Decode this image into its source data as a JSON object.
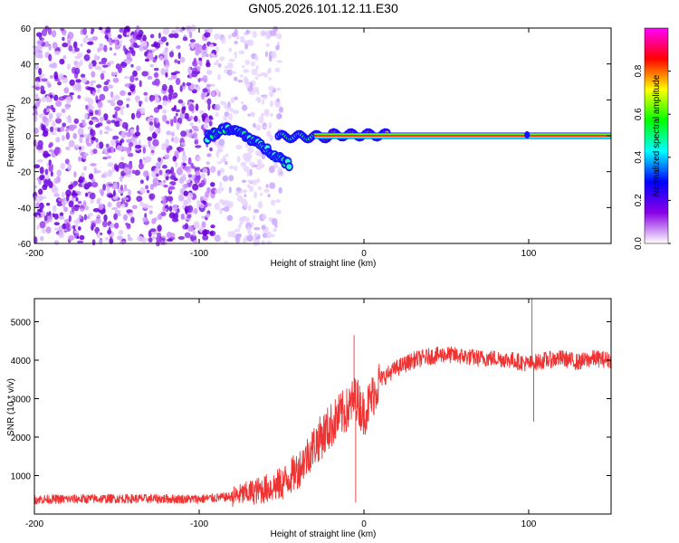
{
  "figure": {
    "title": "GN05.2026.101.12.11.E30"
  },
  "chart_data": [
    {
      "type": "heatmap",
      "title": "GN05.2026.101.12.11.E30",
      "xlabel": "Height of straight line (km)",
      "ylabel": "Frequency (Hz)",
      "xlim": [
        -200,
        150
      ],
      "ylim": [
        -60,
        60
      ],
      "xticks": [
        -200,
        -100,
        0,
        100
      ],
      "xtick_labels": [
        "-200",
        "-100",
        "0",
        "100"
      ],
      "yticks": [
        -60,
        -40,
        -20,
        0,
        20,
        40,
        60
      ],
      "ytick_labels": [
        "-60",
        "-40",
        "-20",
        "0",
        "20",
        "40",
        "60"
      ],
      "colorbar": {
        "label": "Normalized spectral amplitude",
        "range": [
          0,
          1
        ],
        "ticks": [
          0.0,
          0.2,
          0.4,
          0.6,
          0.8
        ],
        "tick_labels": [
          "0.0",
          "0.2",
          "0.4",
          "0.6",
          "0.8"
        ],
        "colormap": "rainbow",
        "colors": [
          "#ffffff",
          "#8a00e6",
          "#0000ff",
          "#00ffff",
          "#00ff00",
          "#ffff00",
          "#ff0000",
          "#ff00ff"
        ]
      },
      "features": {
        "noise_region_x": [
          -200,
          -90
        ],
        "noise_fade_x": [
          -90,
          -50
        ],
        "signal_line_x": [
          -30,
          150
        ],
        "signal_line_frequency": 0,
        "meteor_track": [
          {
            "x": -95,
            "y": -1
          },
          {
            "x": -85,
            "y": 4
          },
          {
            "x": -75,
            "y": 2
          },
          {
            "x": -65,
            "y": -4
          },
          {
            "x": -55,
            "y": -10
          },
          {
            "x": -45,
            "y": -16
          }
        ]
      }
    },
    {
      "type": "line",
      "xlabel": "Height of straight line (km)",
      "ylabel": "SNR (10 * v/v)",
      "xlim": [
        -200,
        150
      ],
      "ylim": [
        0,
        5600
      ],
      "xticks": [
        -200,
        -100,
        0,
        100
      ],
      "xtick_labels": [
        "-200",
        "-100",
        "0",
        "100"
      ],
      "yticks": [
        1000,
        2000,
        3000,
        4000,
        5000
      ],
      "ytick_labels": [
        "1000",
        "2000",
        "3000",
        "4000",
        "5000"
      ],
      "series": [
        {
          "name": "SNR",
          "color": "#ef3333",
          "x": [
            -200,
            -150,
            -100,
            -80,
            -60,
            -50,
            -40,
            -30,
            -20,
            -15,
            -10,
            -5,
            0,
            10,
            20,
            30,
            40,
            50,
            60,
            70,
            80,
            90,
            100,
            110,
            120,
            130,
            140,
            150
          ],
          "y": [
            380,
            400,
            390,
            450,
            650,
            780,
            1150,
            1800,
            2300,
            2550,
            2700,
            3050,
            2600,
            3500,
            3800,
            4000,
            4100,
            4150,
            4100,
            4050,
            4050,
            4000,
            3900,
            4000,
            4050,
            3950,
            4050,
            4000
          ],
          "spikes": [
            {
              "x": -6,
              "y": 4650
            },
            {
              "x": -5,
              "y": 300
            },
            {
              "x": 102,
              "y": 5600
            },
            {
              "x": 103,
              "y": 2400
            }
          ]
        }
      ]
    }
  ]
}
